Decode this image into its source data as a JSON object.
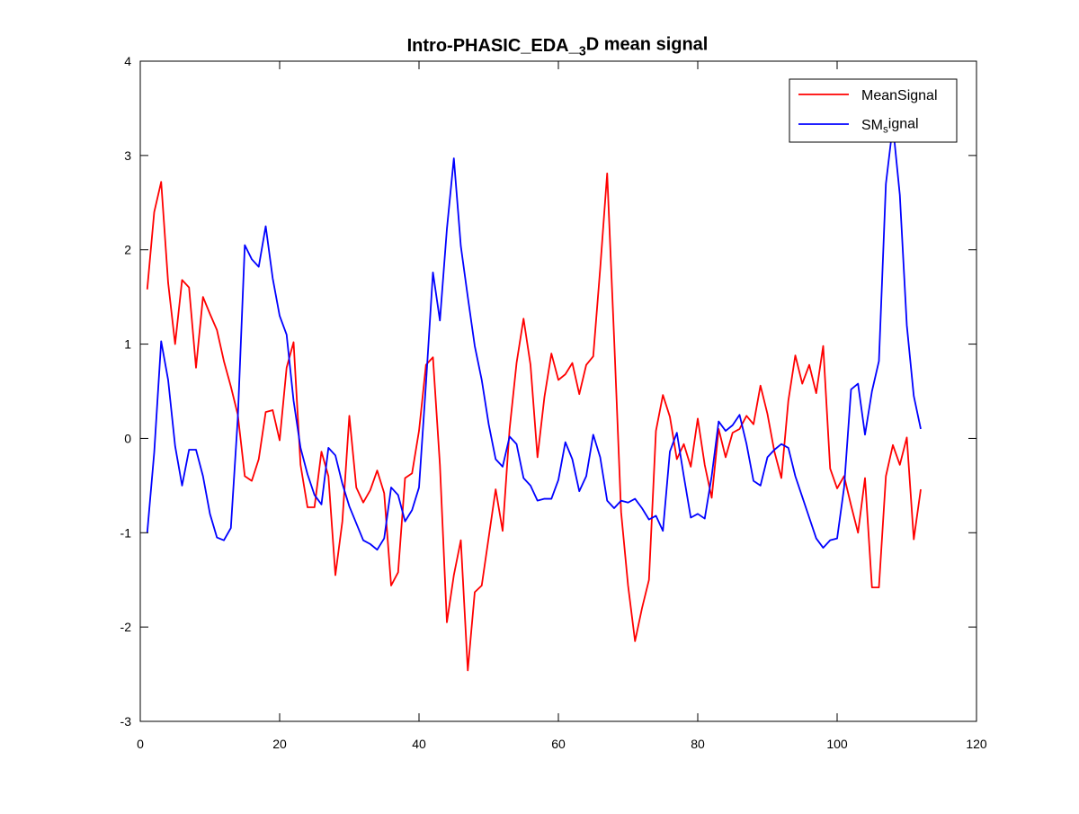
{
  "chart_data": {
    "type": "line",
    "title_parts": [
      "Intro-PHASIC_EDA_",
      "3",
      "D mean signal"
    ],
    "xlabel": "",
    "ylabel": "",
    "xlim": [
      0,
      120
    ],
    "ylim": [
      -3,
      4
    ],
    "xticks": [
      0,
      20,
      40,
      60,
      80,
      100,
      120
    ],
    "yticks": [
      -3,
      -2,
      -1,
      0,
      1,
      2,
      3,
      4
    ],
    "grid": false,
    "legend_position": "top-right",
    "legend_entries": [
      {
        "parts": [
          "MeanSignal"
        ]
      },
      {
        "parts": [
          "SM",
          "s",
          "ignal"
        ]
      }
    ],
    "x": [
      1,
      2,
      3,
      4,
      5,
      6,
      7,
      8,
      9,
      10,
      11,
      12,
      13,
      14,
      15,
      16,
      17,
      18,
      19,
      20,
      21,
      22,
      23,
      24,
      25,
      26,
      27,
      28,
      29,
      30,
      31,
      32,
      33,
      34,
      35,
      36,
      37,
      38,
      39,
      40,
      41,
      42,
      43,
      44,
      45,
      46,
      47,
      48,
      49,
      50,
      51,
      52,
      53,
      54,
      55,
      56,
      57,
      58,
      59,
      60,
      61,
      62,
      63,
      64,
      65,
      66,
      67,
      68,
      69,
      70,
      71,
      72,
      73,
      74,
      75,
      76,
      77,
      78,
      79,
      80,
      81,
      82,
      83,
      84,
      85,
      86,
      87,
      88,
      89,
      90,
      91,
      92,
      93,
      94,
      95,
      96,
      97,
      98,
      99,
      100,
      101,
      102,
      103,
      104,
      105,
      106,
      107,
      108,
      109,
      110,
      111,
      112
    ],
    "series": [
      {
        "name": "MeanSignal",
        "color": "#ff0000",
        "values": [
          1.58,
          2.4,
          2.72,
          1.65,
          1.0,
          1.68,
          1.6,
          0.75,
          1.5,
          1.32,
          1.15,
          0.82,
          0.55,
          0.25,
          -0.4,
          -0.45,
          -0.22,
          0.28,
          0.3,
          -0.02,
          0.75,
          1.02,
          -0.28,
          -0.73,
          -0.73,
          -0.14,
          -0.4,
          -1.45,
          -0.88,
          0.24,
          -0.52,
          -0.68,
          -0.55,
          -0.34,
          -0.58,
          -1.56,
          -1.42,
          -0.42,
          -0.37,
          0.08,
          0.78,
          0.86,
          -0.28,
          -1.95,
          -1.45,
          -1.08,
          -2.46,
          -1.63,
          -1.56,
          -1.05,
          -0.54,
          -0.98,
          0.1,
          0.8,
          1.27,
          0.78,
          -0.2,
          0.44,
          0.9,
          0.62,
          0.68,
          0.8,
          0.47,
          0.78,
          0.87,
          1.8,
          2.81,
          1.06,
          -0.78,
          -1.56,
          -2.15,
          -1.8,
          -1.5,
          0.08,
          0.46,
          0.23,
          -0.22,
          -0.06,
          -0.3,
          0.21,
          -0.28,
          -0.63,
          0.1,
          -0.2,
          0.06,
          0.1,
          0.24,
          0.15,
          0.56,
          0.26,
          -0.14,
          -0.42,
          0.4,
          0.88,
          0.58,
          0.78,
          0.48,
          0.98,
          -0.32,
          -0.53,
          -0.4,
          -0.71,
          -1.0,
          -0.42,
          -1.58,
          -1.58,
          -0.4,
          -0.07,
          -0.28,
          0.01,
          -1.07,
          -0.54
        ]
      },
      {
        "name": "SM_signal",
        "color": "#0000ff",
        "values": [
          -1.0,
          -0.15,
          1.03,
          0.62,
          -0.08,
          -0.5,
          -0.12,
          -0.12,
          -0.4,
          -0.8,
          -1.05,
          -1.08,
          -0.95,
          0.22,
          2.05,
          1.9,
          1.82,
          2.25,
          1.7,
          1.3,
          1.1,
          0.4,
          -0.1,
          -0.38,
          -0.6,
          -0.7,
          -0.1,
          -0.18,
          -0.48,
          -0.72,
          -0.9,
          -1.08,
          -1.12,
          -1.18,
          -1.06,
          -0.52,
          -0.6,
          -0.88,
          -0.76,
          -0.52,
          0.58,
          1.76,
          1.25,
          2.22,
          2.97,
          2.04,
          1.5,
          0.98,
          0.62,
          0.15,
          -0.22,
          -0.3,
          0.02,
          -0.06,
          -0.42,
          -0.5,
          -0.66,
          -0.64,
          -0.64,
          -0.44,
          -0.04,
          -0.22,
          -0.56,
          -0.4,
          0.04,
          -0.2,
          -0.66,
          -0.74,
          -0.66,
          -0.68,
          -0.64,
          -0.74,
          -0.86,
          -0.82,
          -0.98,
          -0.14,
          0.06,
          -0.4,
          -0.84,
          -0.8,
          -0.85,
          -0.4,
          0.18,
          0.08,
          0.14,
          0.25,
          -0.06,
          -0.45,
          -0.5,
          -0.2,
          -0.12,
          -0.06,
          -0.1,
          -0.4,
          -0.62,
          -0.84,
          -1.06,
          -1.16,
          -1.08,
          -1.06,
          -0.52,
          0.52,
          0.58,
          0.04,
          0.5,
          0.82,
          2.7,
          3.32,
          2.58,
          1.2,
          0.45,
          0.1
        ]
      }
    ]
  }
}
